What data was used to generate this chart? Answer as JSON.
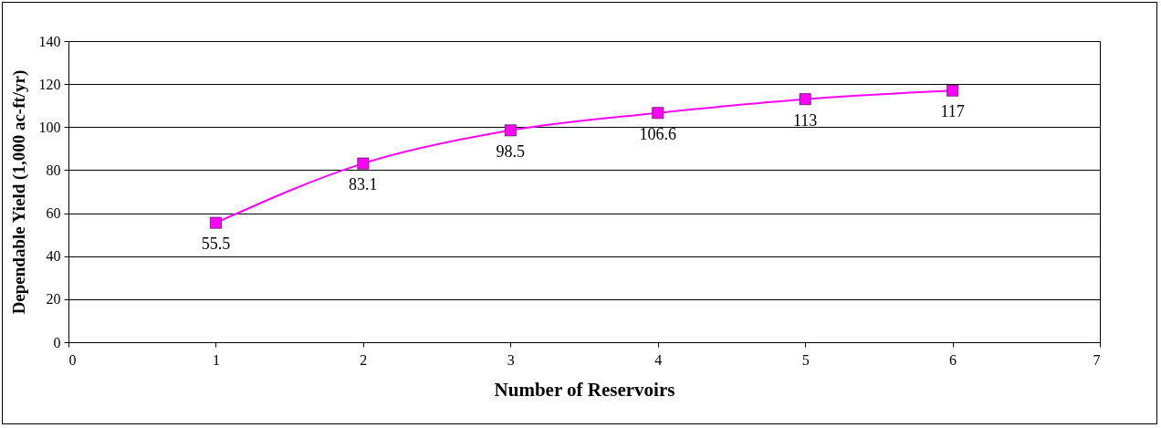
{
  "chart_data": {
    "type": "line",
    "xlabel": "Number of Reservoirs",
    "ylabel": "Dependable Yield (1,000 ac-ft/yr)",
    "x": [
      1,
      2,
      3,
      4,
      5,
      6
    ],
    "series": [
      {
        "color": "#ff00ff",
        "values": [
          55.5,
          83.1,
          98.5,
          106.6,
          113,
          117
        ]
      }
    ],
    "xlim": [
      0,
      7
    ],
    "xticks": [
      0,
      1,
      2,
      3,
      4,
      5,
      6,
      7
    ],
    "ylim": [
      0,
      140
    ],
    "yticks": [
      0,
      20,
      40,
      60,
      80,
      100,
      120,
      140
    ],
    "grid": "y",
    "marker": "square",
    "line_style": "solid",
    "data_labels": true
  }
}
